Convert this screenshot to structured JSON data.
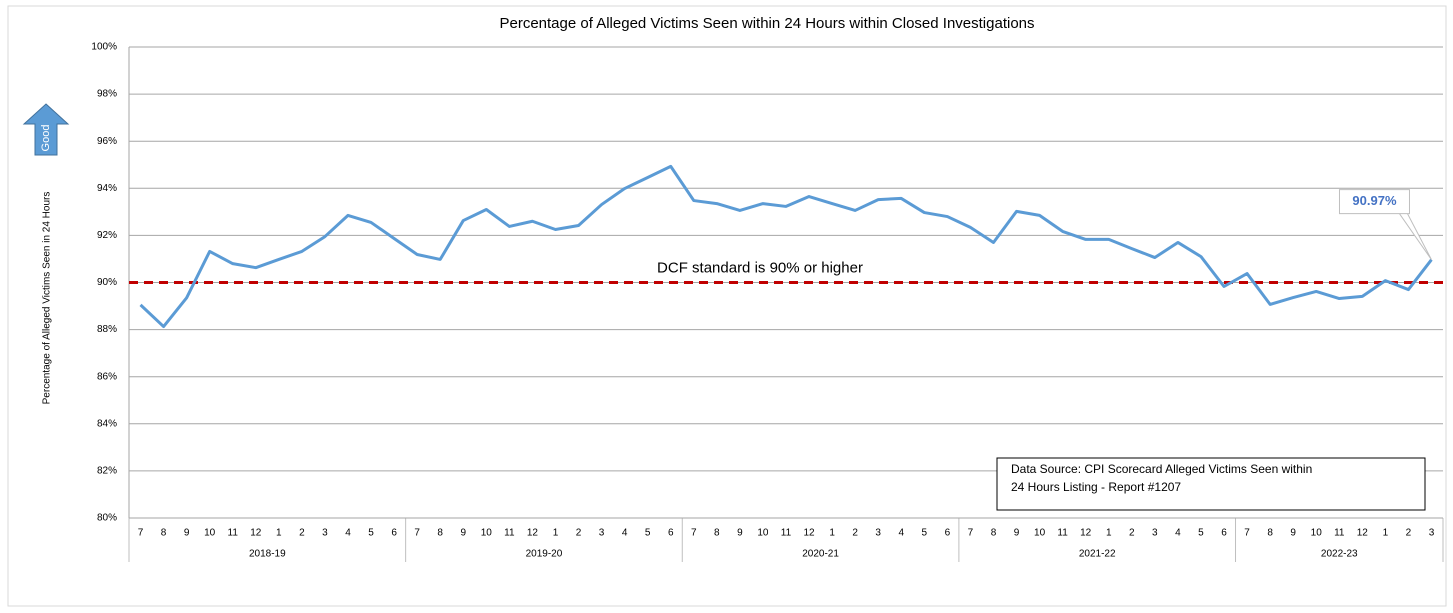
{
  "chart_data": {
    "type": "line",
    "title": "Percentage of Alleged Victims Seen within 24 Hours within Closed Investigations",
    "y_axis_label": "Percentage of Alleged Victims Seen in 24 Hours",
    "direction_label": "Good",
    "groups": [
      {
        "name": "2018-19",
        "categories": [
          "7",
          "8",
          "9",
          "10",
          "11",
          "12",
          "1",
          "2",
          "3",
          "4",
          "5",
          "6"
        ]
      },
      {
        "name": "2019-20",
        "categories": [
          "7",
          "8",
          "9",
          "10",
          "11",
          "12",
          "1",
          "2",
          "3",
          "4",
          "5",
          "6"
        ]
      },
      {
        "name": "2020-21",
        "categories": [
          "7",
          "8",
          "9",
          "10",
          "11",
          "12",
          "1",
          "2",
          "3",
          "4",
          "5",
          "6"
        ]
      },
      {
        "name": "2021-22",
        "categories": [
          "7",
          "8",
          "9",
          "10",
          "11",
          "12",
          "1",
          "2",
          "3",
          "4",
          "5",
          "6"
        ]
      },
      {
        "name": "2022-23",
        "categories": [
          "7",
          "8",
          "9",
          "10",
          "11",
          "12",
          "1",
          "2",
          "3"
        ]
      }
    ],
    "series": [
      {
        "color": "#5b9bd5",
        "values": [
          89.05,
          88.13,
          89.35,
          91.32,
          90.8,
          90.63,
          90.98,
          91.32,
          91.95,
          92.85,
          92.55,
          91.87,
          91.19,
          90.98,
          92.63,
          93.1,
          92.38,
          92.6,
          92.25,
          92.42,
          93.31,
          93.99,
          94.46,
          94.93,
          93.48,
          93.35,
          93.06,
          93.35,
          93.23,
          93.65,
          93.35,
          93.06,
          93.52,
          93.57,
          92.97,
          92.8,
          92.34,
          91.7,
          93.02,
          92.85,
          92.17,
          91.83,
          91.83,
          91.44,
          91.06,
          91.7,
          91.1,
          89.83,
          90.38,
          89.07,
          89.36,
          89.62,
          89.32,
          89.41,
          90.08,
          89.7,
          90.97
        ],
        "value_labels": [
          null,
          null,
          null,
          null,
          null,
          null,
          null,
          null,
          null,
          null,
          null,
          null,
          null,
          null,
          null,
          null,
          null,
          null,
          null,
          null,
          null,
          null,
          null,
          null,
          null,
          null,
          null,
          null,
          null,
          null,
          null,
          null,
          null,
          null,
          null,
          null,
          null,
          null,
          null,
          null,
          null,
          null,
          null,
          null,
          null,
          null,
          null,
          null,
          null,
          null,
          null,
          null,
          null,
          null,
          null,
          null,
          "90.97%"
        ]
      }
    ],
    "reference_line": {
      "value": 90,
      "label": "DCF standard is 90% or higher",
      "color": "#c00000"
    },
    "source_note": [
      "Data Source: CPI Scorecard Alleged Victims Seen within",
      "24 Hours Listing - Report #1207"
    ],
    "ylim": [
      80,
      100
    ],
    "yticks": [
      {
        "value": 80,
        "label": "80%"
      },
      {
        "value": 82,
        "label": "82%"
      },
      {
        "value": 84,
        "label": "84%"
      },
      {
        "value": 86,
        "label": "86%"
      },
      {
        "value": 88,
        "label": "88%"
      },
      {
        "value": 90,
        "label": "90%"
      },
      {
        "value": 92,
        "label": "92%"
      },
      {
        "value": 94,
        "label": "94%"
      },
      {
        "value": 96,
        "label": "96%"
      },
      {
        "value": 98,
        "label": "98%"
      },
      {
        "value": 100,
        "label": "100%"
      }
    ],
    "grid": true
  }
}
